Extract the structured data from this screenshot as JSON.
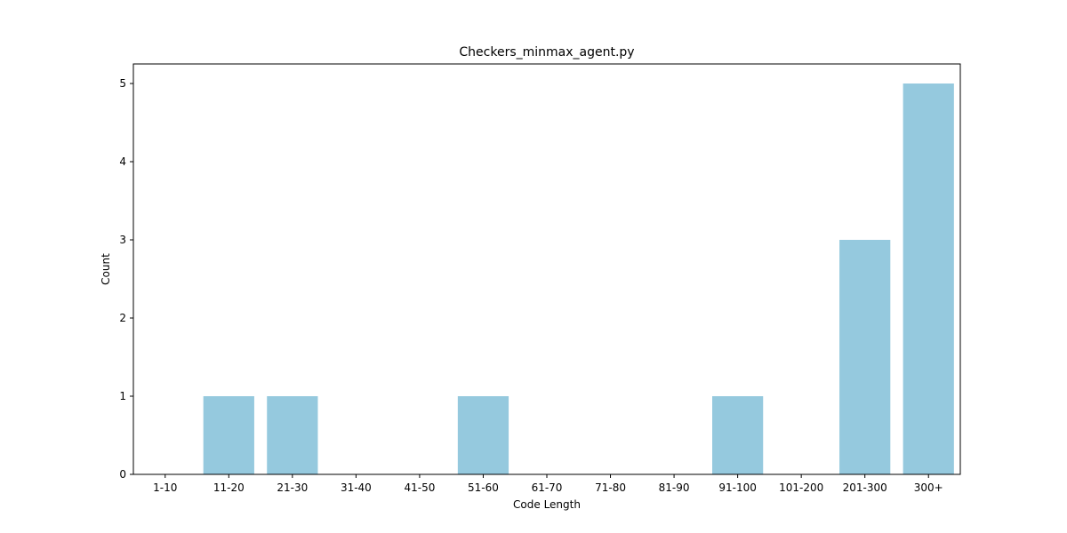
{
  "chart_data": {
    "type": "bar",
    "title": "Checkers_minmax_agent.py",
    "xlabel": "Code Length",
    "ylabel": "Count",
    "categories": [
      "1-10",
      "11-20",
      "21-30",
      "31-40",
      "41-50",
      "51-60",
      "61-70",
      "71-80",
      "81-90",
      "91-100",
      "101-200",
      "201-300",
      "300+"
    ],
    "values": [
      0,
      1,
      1,
      0,
      0,
      1,
      0,
      0,
      0,
      1,
      0,
      3,
      5
    ],
    "ylim": [
      0,
      5.25
    ],
    "yticks": [
      0,
      1,
      2,
      3,
      4,
      5
    ],
    "bar_color": "#95c9de",
    "grid": false
  }
}
